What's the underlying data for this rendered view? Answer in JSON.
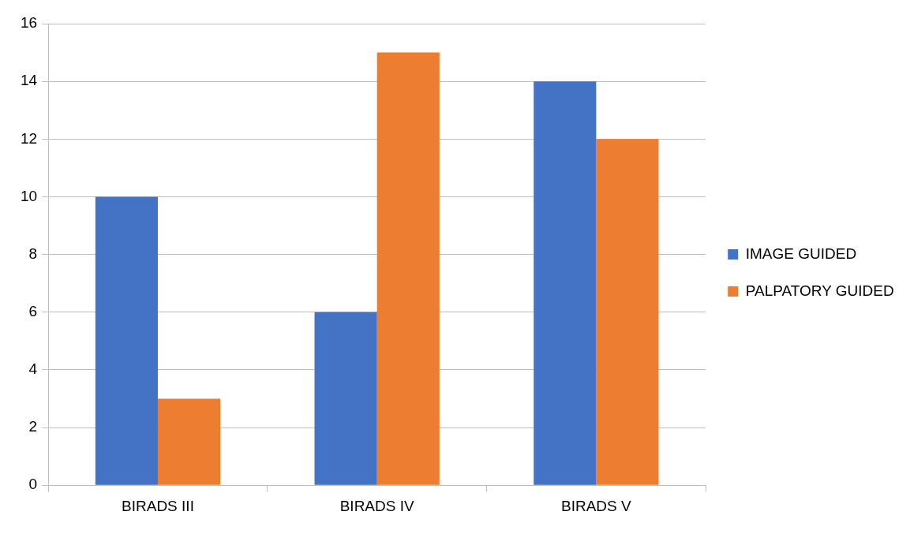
{
  "chart_data": {
    "type": "bar",
    "categories": [
      "BIRADS III",
      "BIRADS IV",
      "BIRADS V"
    ],
    "series": [
      {
        "name": "IMAGE GUIDED",
        "color": "#4472c4",
        "values": [
          10,
          6,
          14
        ]
      },
      {
        "name": "PALPATORY GUIDED",
        "color": "#ed7d31",
        "values": [
          3,
          15,
          12
        ]
      }
    ],
    "ylim": [
      0,
      16
    ],
    "yticks": [
      0,
      2,
      4,
      6,
      8,
      10,
      12,
      14,
      16
    ],
    "grid": "y",
    "legend": "right"
  }
}
